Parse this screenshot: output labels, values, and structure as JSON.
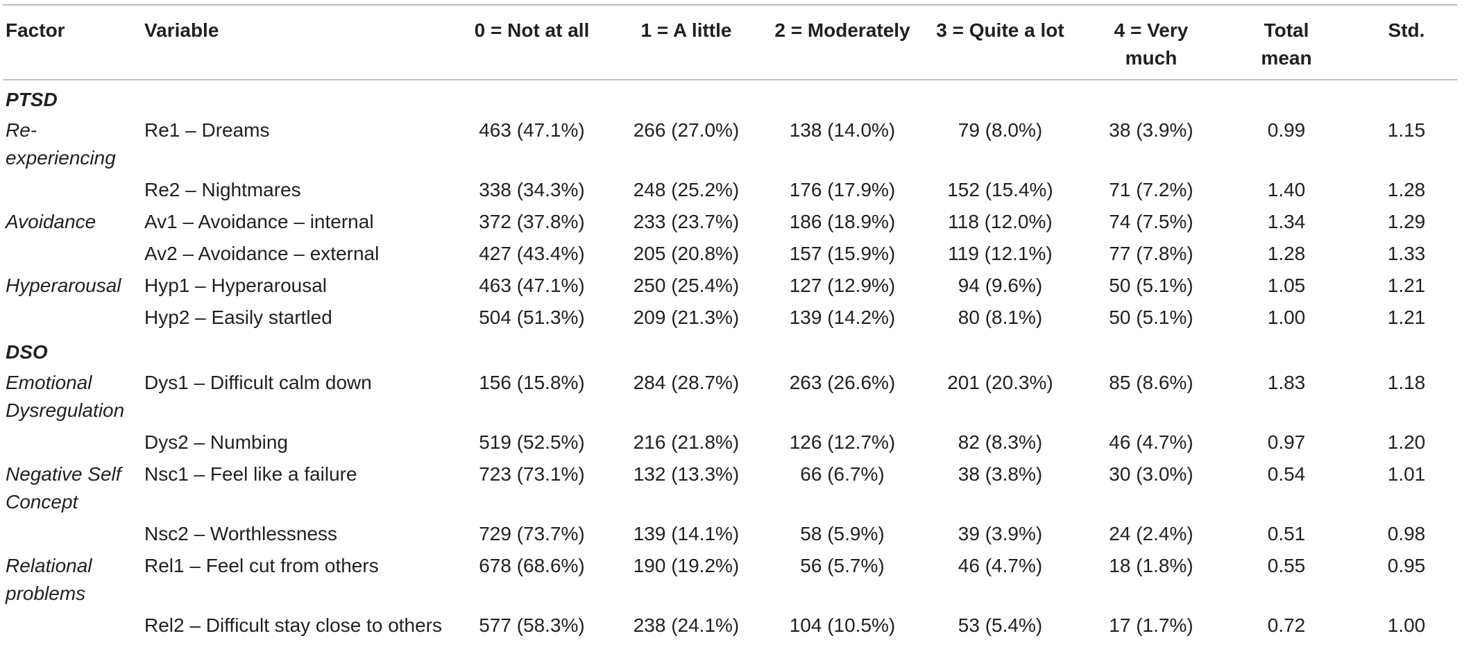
{
  "headers": [
    "Factor",
    "Variable",
    "0 = Not at all",
    "1 = A little",
    "2 = Moderately",
    "3 = Quite a lot",
    "4 = Very much",
    "Total mean",
    "Std."
  ],
  "sections": [
    {
      "title": "PTSD",
      "rows": [
        {
          "factor": "Re-experiencing",
          "variable": "Re1 – Dreams",
          "v0": "463 (47.1%)",
          "v1": "266 (27.0%)",
          "v2": "138 (14.0%)",
          "v3": "79 (8.0%)",
          "v4": "38 (3.9%)",
          "mean": "0.99",
          "std": "1.15"
        },
        {
          "factor": "",
          "variable": "Re2 – Nightmares",
          "v0": "338 (34.3%)",
          "v1": "248 (25.2%)",
          "v2": "176 (17.9%)",
          "v3": "152 (15.4%)",
          "v4": "71 (7.2%)",
          "mean": "1.40",
          "std": "1.28"
        },
        {
          "factor": "Avoidance",
          "variable": "Av1 – Avoidance – internal",
          "v0": "372 (37.8%)",
          "v1": "233 (23.7%)",
          "v2": "186 (18.9%)",
          "v3": "118 (12.0%)",
          "v4": "74 (7.5%)",
          "mean": "1.34",
          "std": "1.29"
        },
        {
          "factor": "",
          "variable": "Av2 – Avoidance – external",
          "v0": "427 (43.4%)",
          "v1": "205 (20.8%)",
          "v2": "157 (15.9%)",
          "v3": "119 (12.1%)",
          "v4": "77 (7.8%)",
          "mean": "1.28",
          "std": "1.33"
        },
        {
          "factor": "Hyperarousal",
          "variable": "Hyp1 – Hyperarousal",
          "v0": "463 (47.1%)",
          "v1": "250 (25.4%)",
          "v2": "127 (12.9%)",
          "v3": "94 (9.6%)",
          "v4": "50 (5.1%)",
          "mean": "1.05",
          "std": "1.21"
        },
        {
          "factor": "",
          "variable": "Hyp2 – Easily startled",
          "v0": "504 (51.3%)",
          "v1": "209 (21.3%)",
          "v2": "139 (14.2%)",
          "v3": "80 (8.1%)",
          "v4": "50 (5.1%)",
          "mean": "1.00",
          "std": "1.21"
        }
      ]
    },
    {
      "title": "DSO",
      "rows": [
        {
          "factor": "Emotional Dysregulation",
          "variable": "Dys1 – Difficult calm down",
          "v0": "156 (15.8%)",
          "v1": "284 (28.7%)",
          "v2": "263 (26.6%)",
          "v3": "201 (20.3%)",
          "v4": "85 (8.6%)",
          "mean": "1.83",
          "std": "1.18"
        },
        {
          "factor": "",
          "variable": "Dys2 – Numbing",
          "v0": "519 (52.5%)",
          "v1": "216 (21.8%)",
          "v2": "126 (12.7%)",
          "v3": "82 (8.3%)",
          "v4": "46 (4.7%)",
          "mean": "0.97",
          "std": "1.20"
        },
        {
          "factor": "Negative Self Concept",
          "variable": "Nsc1 – Feel like a failure",
          "v0": "723 (73.1%)",
          "v1": "132 (13.3%)",
          "v2": "66 (6.7%)",
          "v3": "38 (3.8%)",
          "v4": "30 (3.0%)",
          "mean": "0.54",
          "std": "1.01"
        },
        {
          "factor": "",
          "variable": "Nsc2 – Worthlessness",
          "v0": "729 (73.7%)",
          "v1": "139 (14.1%)",
          "v2": "58 (5.9%)",
          "v3": "39 (3.9%)",
          "v4": "24 (2.4%)",
          "mean": "0.51",
          "std": "0.98"
        },
        {
          "factor": "Relational problems",
          "variable": "Rel1 – Feel cut from others",
          "v0": "678 (68.6%)",
          "v1": "190 (19.2%)",
          "v2": "56 (5.7%)",
          "v3": "46 (4.7%)",
          "v4": "18 (1.8%)",
          "mean": "0.55",
          "std": "0.95"
        },
        {
          "factor": "",
          "variable": "Rel2 – Difficult stay close to others",
          "v0": "577 (58.3%)",
          "v1": "238 (24.1%)",
          "v2": "104 (10.5%)",
          "v3": "53 (5.4%)",
          "v4": "17 (1.7%)",
          "mean": "0.72",
          "std": "1.00"
        }
      ]
    }
  ]
}
